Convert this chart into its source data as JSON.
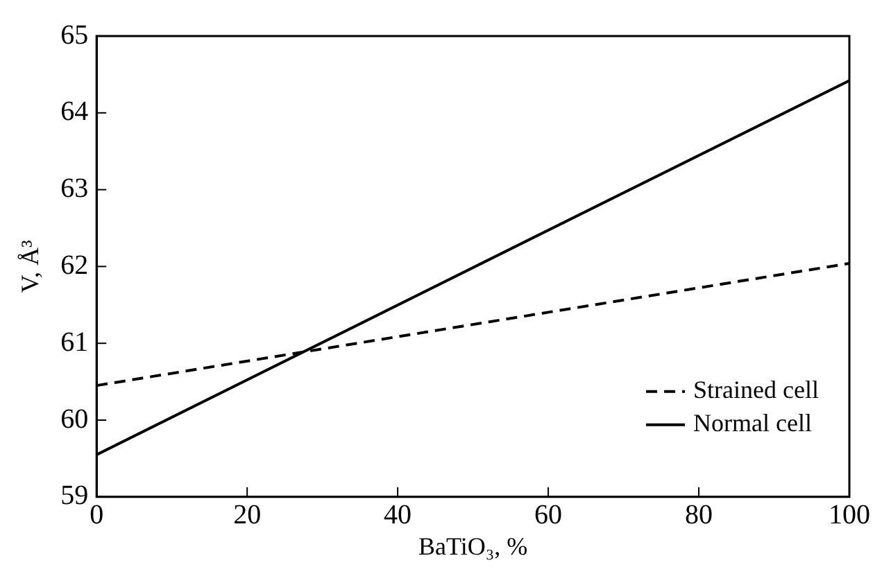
{
  "chart_data": {
    "type": "line",
    "xlabel": "BaTiO₃, %",
    "ylabel": "V, Å³",
    "x": [
      0,
      100
    ],
    "series": [
      {
        "name": "Strained cell",
        "color": "#000000",
        "values": [
          60.45,
          62.04
        ],
        "line_style": "dashed"
      },
      {
        "name": "Normal cell",
        "color": "#000000",
        "values": [
          59.55,
          64.42
        ],
        "line_style": "solid"
      }
    ],
    "xlim": [
      0,
      100
    ],
    "xticks": [
      0,
      20,
      40,
      60,
      80,
      100
    ],
    "ylim": [
      59,
      65
    ],
    "yticks": [
      59,
      60,
      61,
      62,
      63,
      64,
      65
    ],
    "grid": false,
    "legend": "bottom right",
    "marker": "none"
  }
}
